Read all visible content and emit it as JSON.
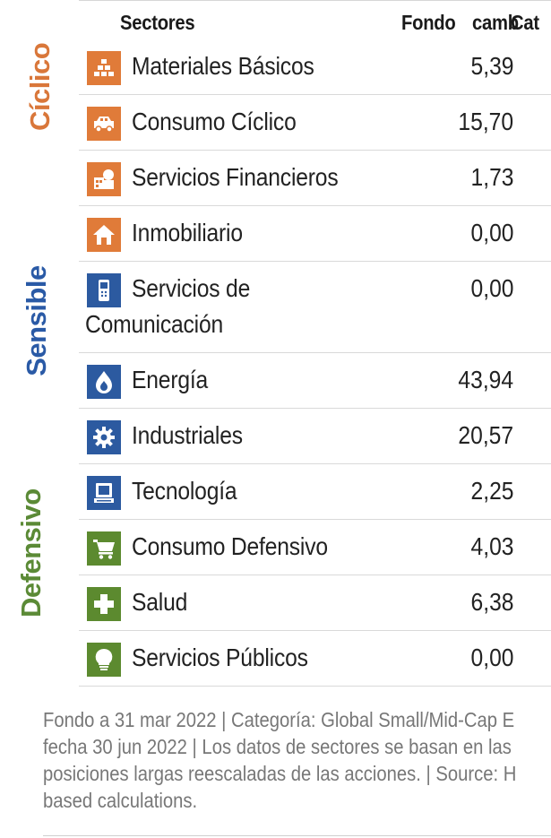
{
  "header": {
    "sector": "Sectores",
    "fund": "Fondo",
    "change": "camb",
    "category": "Cat"
  },
  "groups": {
    "ciclico": "Cíclico",
    "sensible": "Sensible",
    "defensivo": "Defensivo"
  },
  "colors": {
    "ciclico": "#e07b39",
    "sensible": "#2c5aa0",
    "defensivo": "#5c8a2f"
  },
  "rows": [
    {
      "label": "Materiales Básicos",
      "value": "5,39",
      "icon": "basic-materials-icon"
    },
    {
      "label": "Consumo Cíclico",
      "value": "15,70",
      "icon": "car-icon"
    },
    {
      "label": "Servicios Financieros",
      "value": "1,73",
      "icon": "financial-services-icon"
    },
    {
      "label": "Inmobiliario",
      "value": "0,00",
      "icon": "house-icon"
    },
    {
      "label": "Servicios de",
      "label2": "Comunicación",
      "value": "0,00",
      "icon": "phone-icon"
    },
    {
      "label": "Energía",
      "value": "43,94",
      "icon": "flame-icon"
    },
    {
      "label": "Industriales",
      "value": "20,57",
      "icon": "gear-icon"
    },
    {
      "label": "Tecnología",
      "value": "2,25",
      "icon": "computer-icon"
    },
    {
      "label": "Consumo Defensivo",
      "value": "4,03",
      "icon": "shopping-cart-icon"
    },
    {
      "label": "Salud",
      "value": "6,38",
      "icon": "medical-cross-icon"
    },
    {
      "label": "Servicios Públicos",
      "value": "0,00",
      "icon": "lightbulb-icon"
    }
  ],
  "footnote": {
    "line1": "Fondo a 31 mar 2022 | Categoría: Global Small/Mid-Cap E",
    "line2": "fecha 30 jun 2022 | Los datos de sectores se basan en las",
    "line3": "posiciones largas reescaladas de las acciones. | Source: H",
    "line4": "based calculations."
  }
}
